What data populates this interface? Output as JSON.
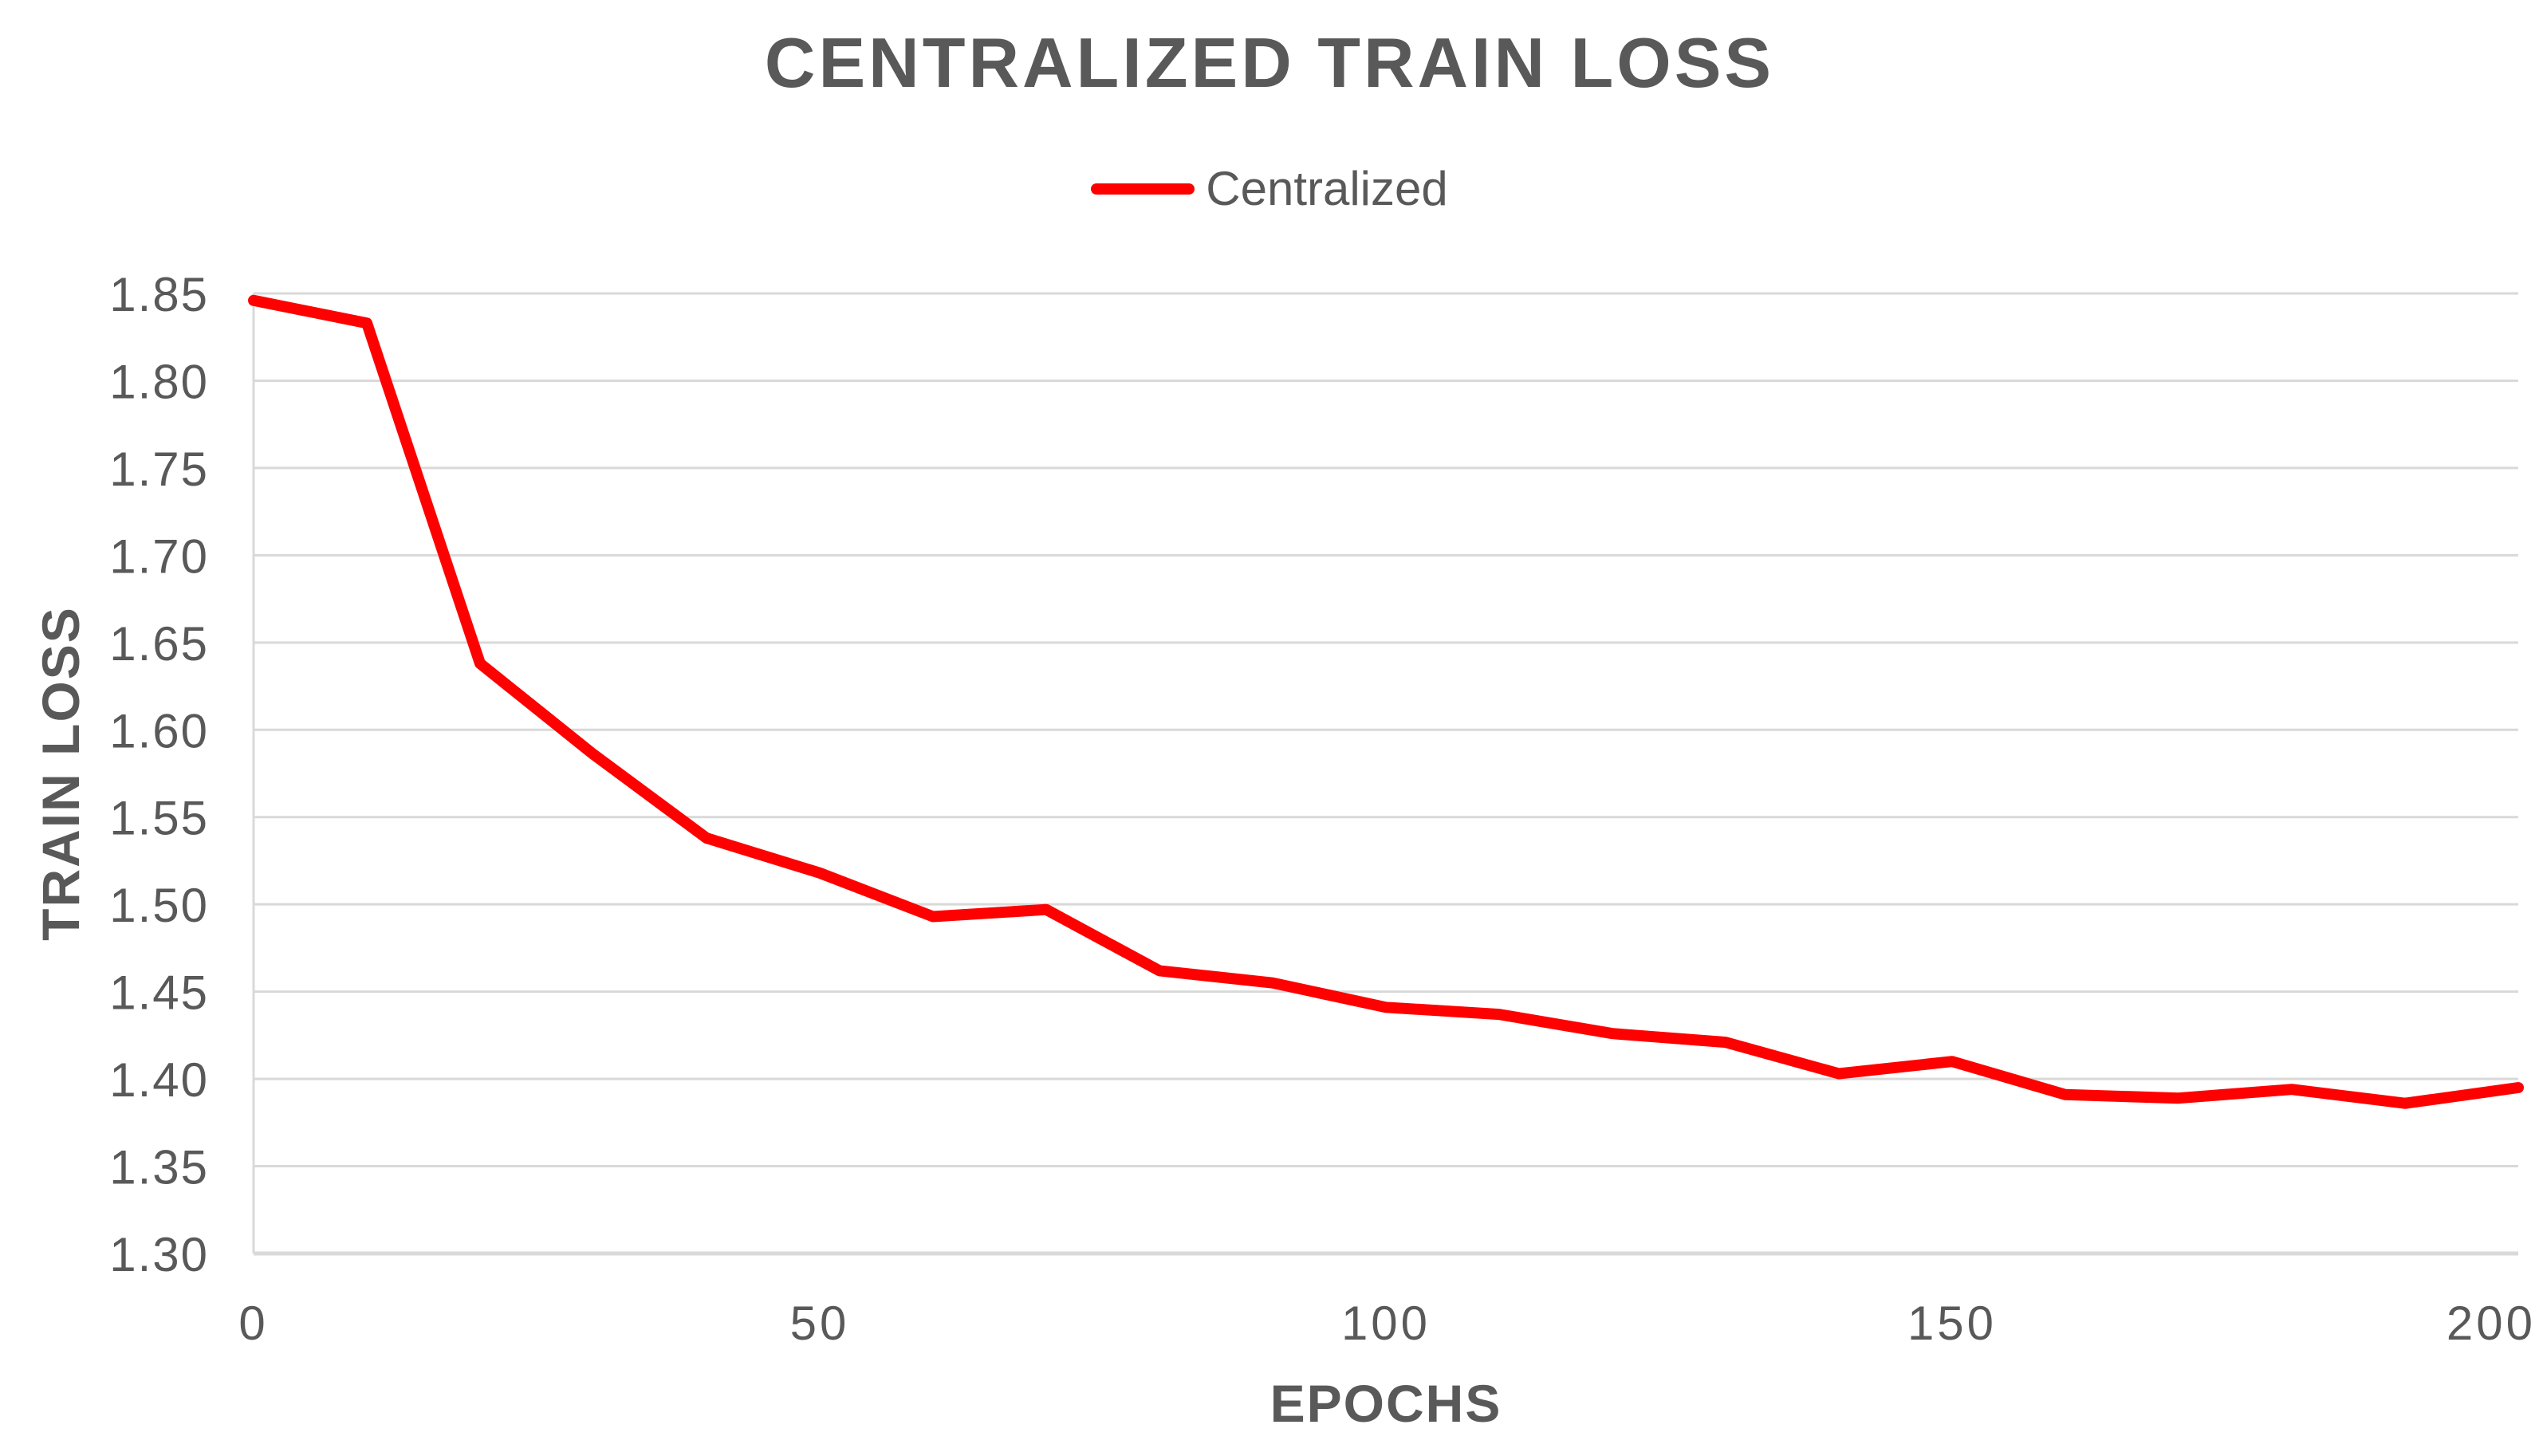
{
  "chart_data": {
    "type": "line",
    "title": "CENTRALIZED TRAIN LOSS",
    "xlabel": "EPOCHS",
    "ylabel": "TRAIN LOSS",
    "x": [
      0,
      10,
      20,
      30,
      40,
      50,
      60,
      70,
      80,
      90,
      100,
      110,
      120,
      130,
      140,
      150,
      160,
      170,
      180,
      190,
      200
    ],
    "series": [
      {
        "name": "Centralized",
        "color": "#FF0000",
        "values": [
          1.846,
          1.833,
          1.638,
          1.586,
          1.538,
          1.518,
          1.493,
          1.497,
          1.462,
          1.455,
          1.441,
          1.437,
          1.426,
          1.421,
          1.403,
          1.41,
          1.391,
          1.389,
          1.394,
          1.386,
          1.395
        ]
      }
    ],
    "xlim": [
      0,
      200
    ],
    "ylim": [
      1.3,
      1.85
    ],
    "x_ticks": [
      0,
      50,
      100,
      150,
      200
    ],
    "y_tick_step": 0.05,
    "y_tick_decimals": 2,
    "grid": "horizontal",
    "legend_position": "top-center"
  },
  "legend": {
    "items": [
      {
        "label": "Centralized",
        "color": "#FF0000"
      }
    ]
  },
  "colors": {
    "text": "#595959",
    "grid": "#D9D9D9",
    "axis": "#D9D9D9",
    "background": "#FFFFFF",
    "series_red": "#FF0000"
  }
}
